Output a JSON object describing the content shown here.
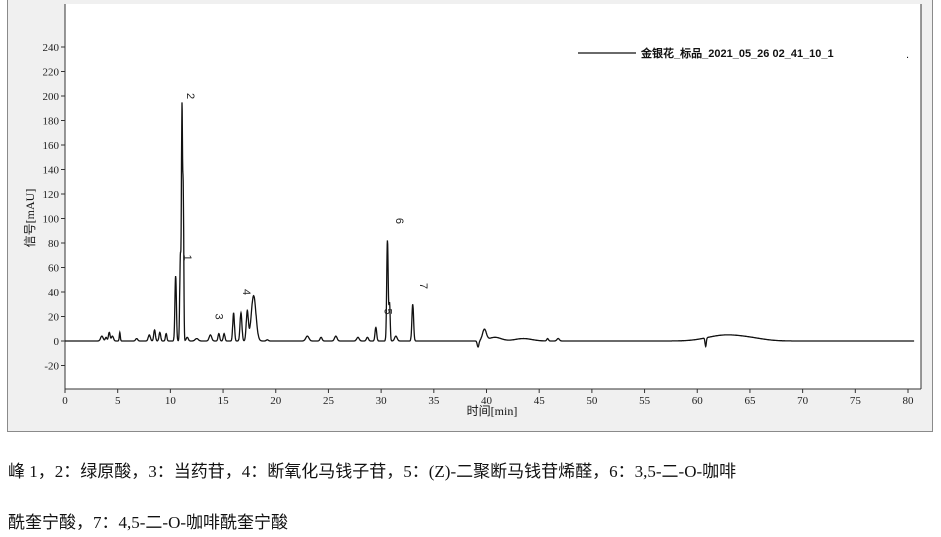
{
  "chart_data": {
    "type": "line",
    "xlabel": "时间[min]",
    "ylabel": "信号[mAU]",
    "xlim": [
      0,
      81.2
    ],
    "ylim": [
      -39,
      250
    ],
    "xticks": [
      0,
      5,
      10,
      15,
      20,
      25,
      30,
      35,
      40,
      45,
      50,
      55,
      60,
      65,
      70,
      75,
      80
    ],
    "yticks": [
      -20,
      0,
      20,
      40,
      60,
      80,
      100,
      120,
      140,
      160,
      180,
      200,
      220,
      240
    ],
    "grid": false,
    "legend": {
      "placement": "top-right",
      "entries": [
        "金银花_标品_2021_05_26 02_41_10_1"
      ]
    },
    "color": "#111111",
    "peaks": [
      {
        "t": 3.5,
        "h": 4,
        "w": 0.12
      },
      {
        "t": 3.9,
        "h": 3,
        "w": 0.08
      },
      {
        "t": 4.2,
        "h": 7,
        "w": 0.08
      },
      {
        "t": 4.5,
        "h": 4,
        "w": 0.1
      },
      {
        "t": 5.2,
        "h": 7,
        "w": 0.05
      },
      {
        "t": 6.8,
        "h": 2,
        "w": 0.1
      },
      {
        "t": 8.0,
        "h": 5,
        "w": 0.1
      },
      {
        "t": 8.5,
        "h": 9,
        "w": 0.08
      },
      {
        "t": 9.0,
        "h": 7,
        "w": 0.08
      },
      {
        "t": 9.6,
        "h": 6,
        "w": 0.07
      },
      {
        "t": 10.5,
        "h": 53,
        "w": 0.07
      },
      {
        "t": 10.95,
        "h": 70,
        "w": 0.06
      },
      {
        "t": 11.1,
        "h": 185,
        "w": 0.05
      },
      {
        "t": 11.22,
        "h": 120,
        "w": 0.05
      },
      {
        "t": 11.6,
        "h": 3,
        "w": 0.1
      },
      {
        "t": 12.5,
        "h": 2,
        "w": 0.15
      },
      {
        "t": 13.8,
        "h": 5,
        "w": 0.12
      },
      {
        "t": 14.6,
        "h": 6,
        "w": 0.08
      },
      {
        "t": 15.1,
        "h": 6,
        "w": 0.08
      },
      {
        "t": 16.0,
        "h": 23,
        "w": 0.08
      },
      {
        "t": 16.7,
        "h": 23,
        "w": 0.09
      },
      {
        "t": 17.3,
        "h": 24,
        "w": 0.1
      },
      {
        "t": 17.9,
        "h": 37,
        "w": 0.22
      },
      {
        "t": 19.2,
        "h": 1,
        "w": 0.1
      },
      {
        "t": 23.0,
        "h": 4,
        "w": 0.15
      },
      {
        "t": 24.3,
        "h": 3,
        "w": 0.1
      },
      {
        "t": 25.7,
        "h": 4,
        "w": 0.12
      },
      {
        "t": 27.8,
        "h": 3,
        "w": 0.12
      },
      {
        "t": 28.7,
        "h": 3,
        "w": 0.1
      },
      {
        "t": 29.5,
        "h": 11,
        "w": 0.08
      },
      {
        "t": 30.6,
        "h": 82,
        "w": 0.07
      },
      {
        "t": 30.8,
        "h": 30,
        "w": 0.06
      },
      {
        "t": 31.4,
        "h": 4,
        "w": 0.12
      },
      {
        "t": 33.0,
        "h": 30,
        "w": 0.08
      },
      {
        "t": 39.2,
        "h": -5,
        "w": 0.08
      },
      {
        "t": 39.8,
        "h": 9,
        "w": 0.18
      },
      {
        "t": 40.8,
        "h": 3,
        "w": 0.6
      },
      {
        "t": 43.5,
        "h": 2,
        "w": 0.8
      },
      {
        "t": 45.8,
        "h": 2,
        "w": 0.08
      },
      {
        "t": 46.8,
        "h": 2,
        "w": 0.12
      },
      {
        "t": 60.8,
        "h": -7,
        "w": 0.06
      },
      {
        "t": 62.5,
        "h": 4.5,
        "w": 1.6
      },
      {
        "t": 65.0,
        "h": 2,
        "w": 1.4
      }
    ],
    "annotations": [
      {
        "label": "1",
        "t": 11.3,
        "y": 68
      },
      {
        "label": "2",
        "t": 11.6,
        "y": 200
      },
      {
        "label": "3",
        "t": 14.3,
        "y": 20
      },
      {
        "label": "4",
        "t": 16.9,
        "y": 40
      },
      {
        "label": "5",
        "t": 30.3,
        "y": 24
      },
      {
        "label": "6",
        "t": 31.4,
        "y": 98
      },
      {
        "label": "7",
        "t": 33.7,
        "y": 45
      }
    ]
  },
  "caption": {
    "line1": "峰 1，2：绿原酸，3：当药苷，4：断氧化马钱子苷，5：(Z)-二聚断马钱苷烯醛，6：3,5-二-O-咖啡",
    "line2": "酰奎宁酸，7：4,5-二-O-咖啡酰奎宁酸"
  }
}
